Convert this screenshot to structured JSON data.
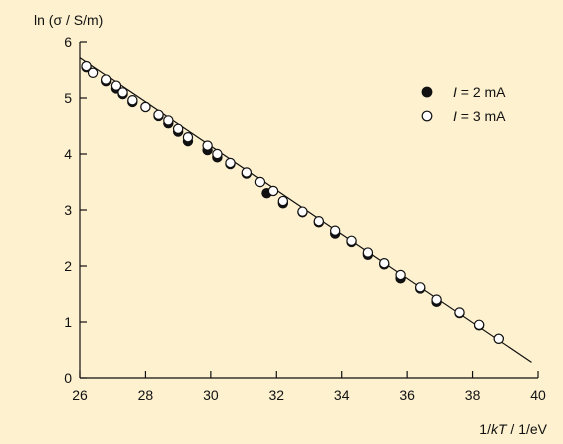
{
  "chart_data": {
    "type": "scatter",
    "ylabel": "ln (σ / S/m)",
    "xlabel": "1/kT / 1/eV",
    "xlim": [
      26,
      40
    ],
    "ylim": [
      0,
      6
    ],
    "x_ticks": [
      "26",
      "28",
      "30",
      "32",
      "34",
      "36",
      "38",
      "40"
    ],
    "y_ticks": [
      "0",
      "1",
      "2",
      "3",
      "4",
      "5",
      "6"
    ],
    "legend_position": "top-right",
    "series": [
      {
        "name": "I = 2 mA",
        "marker": "filled",
        "x": [
          26.2,
          26.8,
          27.1,
          27.3,
          27.6,
          28.0,
          28.4,
          28.7,
          29.0,
          29.3,
          29.9,
          30.2,
          30.6,
          31.1,
          31.7,
          32.2,
          32.8,
          33.3,
          33.8,
          34.3,
          34.8,
          35.3,
          35.8,
          36.4,
          36.9,
          37.6,
          38.2,
          38.8
        ],
        "y": [
          5.55,
          5.3,
          5.17,
          5.07,
          4.93,
          4.84,
          4.68,
          4.55,
          4.4,
          4.23,
          4.07,
          3.94,
          3.82,
          3.65,
          3.3,
          3.12,
          2.96,
          2.78,
          2.58,
          2.43,
          2.2,
          2.03,
          1.78,
          1.6,
          1.36,
          1.16,
          0.94,
          0.7
        ]
      },
      {
        "name": "I = 3 mA",
        "marker": "open",
        "x": [
          26.2,
          26.4,
          26.8,
          27.1,
          27.3,
          27.6,
          28.0,
          28.4,
          28.7,
          29.0,
          29.3,
          29.9,
          30.2,
          30.6,
          31.1,
          31.5,
          31.9,
          32.2,
          32.8,
          33.3,
          33.8,
          34.3,
          34.8,
          35.3,
          35.8,
          36.4,
          36.9,
          37.6,
          38.2,
          38.8
        ],
        "y": [
          5.57,
          5.45,
          5.33,
          5.22,
          5.1,
          4.96,
          4.84,
          4.7,
          4.6,
          4.45,
          4.3,
          4.15,
          4.0,
          3.84,
          3.67,
          3.5,
          3.34,
          3.16,
          2.97,
          2.8,
          2.63,
          2.45,
          2.24,
          2.05,
          1.84,
          1.62,
          1.4,
          1.17,
          0.95,
          0.7
        ]
      }
    ],
    "fit_line": {
      "x": [
        26.0,
        39.8
      ],
      "y": [
        5.72,
        0.28
      ]
    }
  },
  "legend": {
    "italic_symbol": "I",
    "entries": [
      {
        "marker": "filled",
        "text": " = 2 mA"
      },
      {
        "marker": "open",
        "text": " = 3 mA"
      }
    ]
  },
  "axis_labels": {
    "y_prefix": "ln (",
    "y_sigma": "σ",
    "y_suffix": " / S/m)",
    "x_prefix": "1/",
    "x_italic": "kT",
    "x_suffix": " / 1/eV"
  },
  "colors": {
    "background": "#fdf1cf",
    "ink": "#111111",
    "open_marker_fill": "#ffffff"
  }
}
